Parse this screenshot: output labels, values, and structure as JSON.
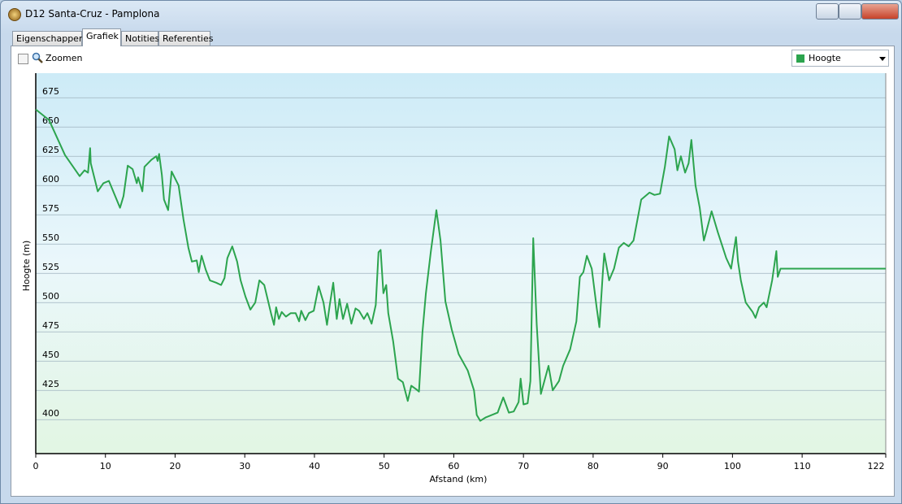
{
  "window": {
    "title": "D12 Santa-Cruz - Pamplona"
  },
  "tabs": [
    "Eigenschappen",
    "Grafiek",
    "Notities",
    "Referenties"
  ],
  "toolbar": {
    "zoom": "Zoomen"
  },
  "chart_data": {
    "type": "line",
    "xlabel": "Afstand  (km)",
    "ylabel": "Hoogte (m)",
    "x": [
      0,
      1.9,
      4.2,
      6.3,
      7.0,
      7.5,
      7.8,
      7.9,
      8.9,
      9.7,
      10.5,
      12.1,
      12.6,
      13.2,
      13.9,
      14.5,
      14.7,
      15.3,
      15.6,
      16.6,
      17.3,
      17.5,
      17.7,
      18.1,
      18.4,
      19.0,
      19.5,
      20.5,
      21.2,
      21.9,
      22.4,
      23.1,
      23.4,
      23.8,
      24.4,
      25.0,
      25.9,
      26.6,
      27.1,
      27.5,
      28.2,
      28.9,
      29.4,
      30.1,
      30.8,
      31.5,
      32.1,
      32.8,
      33.8,
      34.2,
      34.5,
      34.9,
      35.3,
      35.9,
      36.6,
      37.3,
      37.8,
      38.1,
      38.7,
      39.2,
      39.9,
      40.6,
      41.3,
      41.8,
      42.2,
      42.7,
      43.2,
      43.6,
      44.1,
      44.7,
      45.3,
      45.9,
      46.4,
      47.1,
      47.6,
      48.2,
      48.8,
      49.2,
      49.5,
      49.9,
      50.3,
      50.6,
      51.3,
      52.0,
      52.7,
      53.4,
      53.9,
      54.6,
      55.0,
      55.5,
      56.0,
      56.7,
      57.5,
      58.1,
      58.8,
      59.7,
      60.7,
      62.0,
      62.9,
      63.3,
      63.8,
      64.6,
      66.3,
      67.1,
      67.9,
      68.6,
      69.3,
      69.6,
      70.0,
      70.6,
      71.0,
      71.4,
      71.9,
      72.5,
      73.0,
      73.6,
      74.2,
      75.1,
      75.7,
      76.7,
      77.6,
      78.1,
      78.6,
      79.1,
      79.8,
      80.5,
      80.9,
      81.4,
      81.6,
      82.3,
      83.0,
      83.7,
      84.4,
      85.1,
      85.8,
      86.9,
      88.1,
      88.8,
      89.6,
      90.3,
      90.9,
      91.7,
      92.1,
      92.6,
      93.2,
      93.7,
      94.1,
      94.7,
      95.3,
      95.9,
      96.3,
      97.0,
      97.9,
      99.1,
      99.8,
      100.5,
      100.8,
      101.2,
      101.9,
      102.9,
      103.3,
      103.8,
      104.5,
      104.9,
      105.7,
      106.3,
      106.5,
      106.9,
      122
    ],
    "series": [
      {
        "name": "Hoogte",
        "color": "#2ca44e",
        "values": [
          665,
          656,
          626,
          608,
          613,
          611,
          632,
          619,
          595,
          602,
          604,
          581,
          591,
          617,
          614,
          602,
          607,
          595,
          616,
          622,
          625,
          621,
          627,
          609,
          588,
          579,
          612,
          600,
          571,
          547,
          535,
          536,
          526,
          540,
          528,
          519,
          517,
          515,
          521,
          538,
          548,
          535,
          519,
          505,
          494,
          500,
          519,
          515,
          490,
          481,
          496,
          486,
          492,
          488,
          491,
          491,
          484,
          493,
          485,
          491,
          493,
          514,
          500,
          481,
          498,
          517,
          486,
          503,
          486,
          499,
          482,
          495,
          493,
          486,
          491,
          482,
          498,
          543,
          545,
          508,
          515,
          491,
          467,
          435,
          432,
          416,
          429,
          426,
          424,
          474,
          508,
          543,
          579,
          553,
          501,
          477,
          456,
          442,
          425,
          404,
          399,
          402,
          406,
          419,
          406,
          407,
          415,
          435,
          413,
          414,
          433,
          555,
          481,
          422,
          433,
          446,
          425,
          433,
          446,
          460,
          484,
          522,
          526,
          540,
          529,
          496,
          479,
          526,
          542,
          519,
          529,
          547,
          551,
          548,
          553,
          588,
          594,
          592,
          593,
          616,
          642,
          631,
          613,
          625,
          611,
          619,
          639,
          600,
          581,
          553,
          562,
          578,
          560,
          538,
          529,
          556,
          535,
          519,
          500,
          492,
          487,
          496,
          500,
          496,
          519,
          544,
          522,
          529,
          529
        ]
      }
    ],
    "xlim": [
      0,
      122
    ],
    "xticks": [
      0,
      10,
      20,
      30,
      40,
      50,
      60,
      70,
      80,
      90,
      100,
      110,
      122
    ],
    "ylim": [
      371,
      696
    ],
    "yticks": [
      400,
      425,
      450,
      475,
      500,
      525,
      550,
      575,
      600,
      625,
      650,
      675
    ],
    "grid": true
  }
}
